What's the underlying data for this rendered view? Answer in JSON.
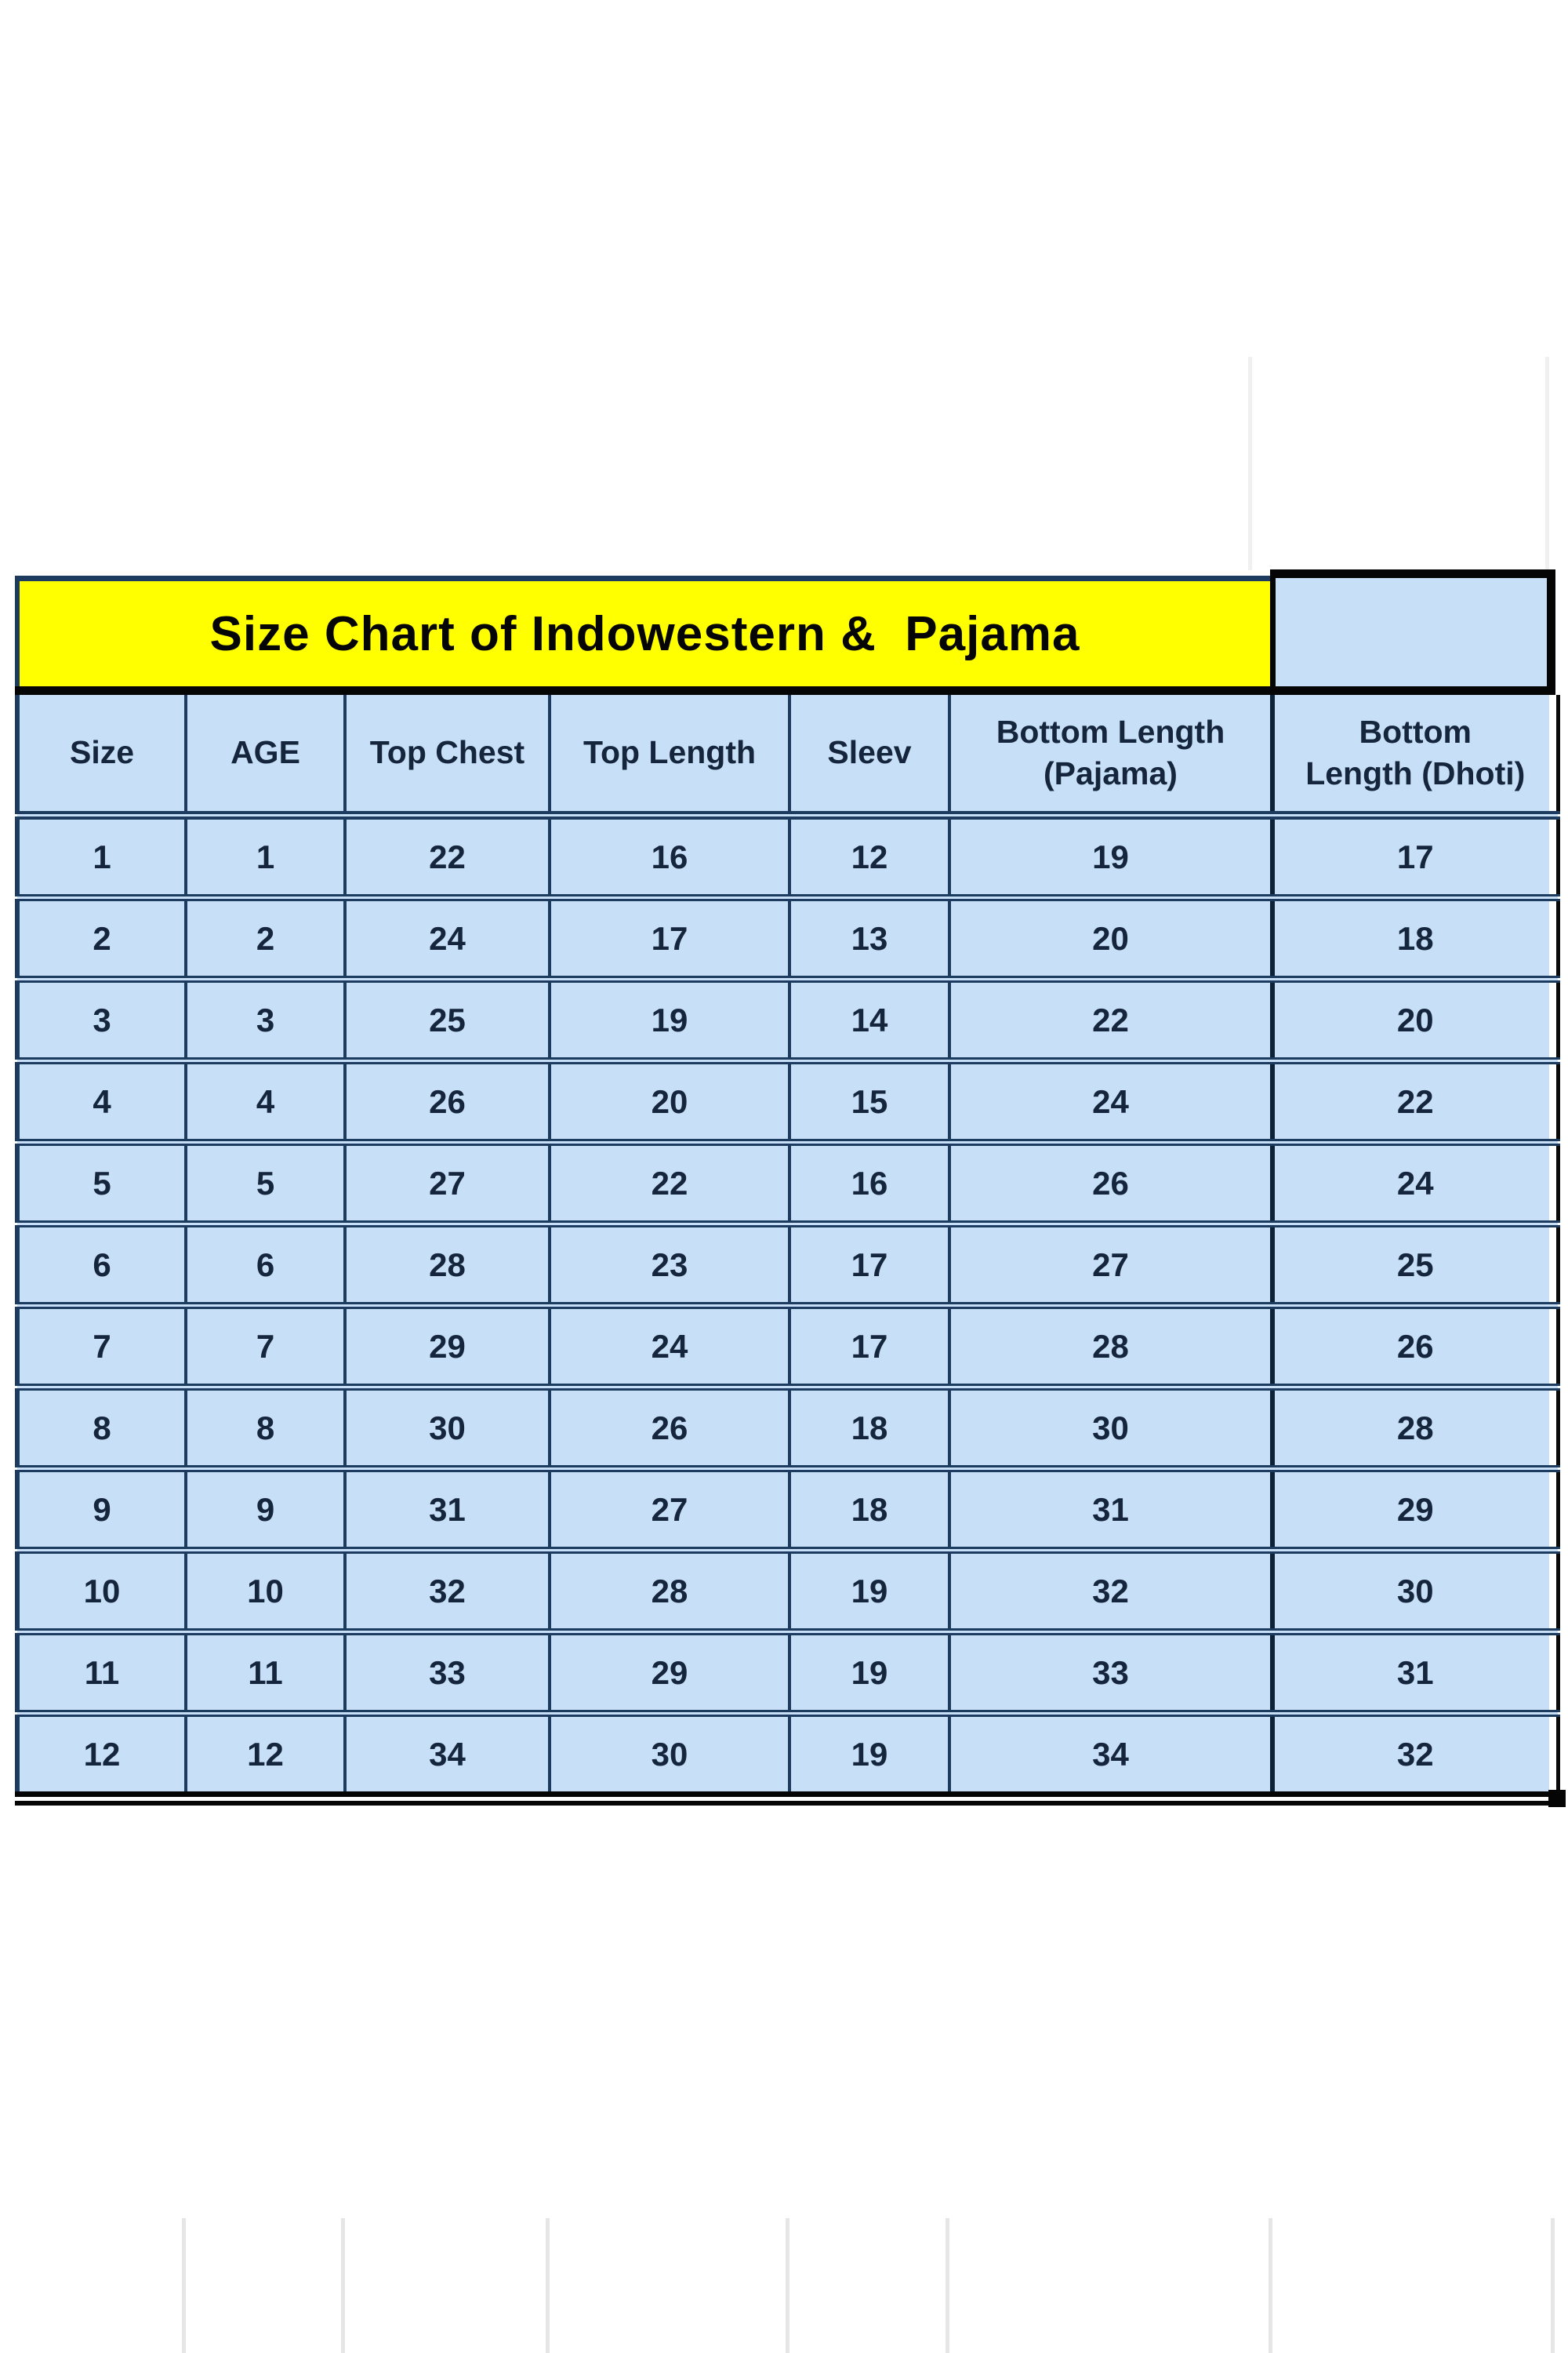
{
  "title": "Size Chart of Indowestern &  Pajama",
  "chart_data": {
    "type": "table",
    "title": "Size Chart of Indowestern & Pajama",
    "columns": [
      "Size",
      "AGE",
      "Top Chest",
      "Top Length",
      "Sleev",
      "Bottom Length (Pajama)",
      "Bottom Length (Dhoti)"
    ],
    "header_display": [
      "Size",
      "AGE",
      "Top Chest",
      "Top Length",
      "Sleev",
      "Bottom Length\n(Pajama)",
      "Bottom\nLength (Dhoti)"
    ],
    "rows": [
      [
        1,
        1,
        22,
        16,
        12,
        19,
        17
      ],
      [
        2,
        2,
        24,
        17,
        13,
        20,
        18
      ],
      [
        3,
        3,
        25,
        19,
        14,
        22,
        20
      ],
      [
        4,
        4,
        26,
        20,
        15,
        24,
        22
      ],
      [
        5,
        5,
        27,
        22,
        16,
        26,
        24
      ],
      [
        6,
        6,
        28,
        23,
        17,
        27,
        25
      ],
      [
        7,
        7,
        29,
        24,
        17,
        28,
        26
      ],
      [
        8,
        8,
        30,
        26,
        18,
        30,
        28
      ],
      [
        9,
        9,
        31,
        27,
        18,
        31,
        29
      ],
      [
        10,
        10,
        32,
        28,
        19,
        32,
        30
      ],
      [
        11,
        11,
        33,
        29,
        19,
        33,
        31
      ],
      [
        12,
        12,
        34,
        30,
        19,
        34,
        32
      ]
    ],
    "layout_hints": {
      "grid": true,
      "title_position": "top-banner"
    }
  },
  "colors": {
    "title_bg": "#ffff00",
    "cell_bg": "#c7e0f7",
    "border_navy": "#1d3a5f",
    "border_black": "#050505",
    "text": "#15253b"
  }
}
